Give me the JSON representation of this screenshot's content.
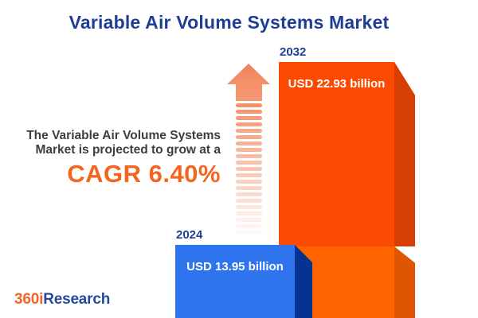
{
  "title": "Variable Air Volume Systems Market",
  "insight": {
    "line1": "The Variable Air Volume Systems",
    "line2": "Market is projected to grow at a",
    "cagr": "CAGR 6.40%"
  },
  "bars": [
    {
      "year_label": "2024",
      "value_label": "USD 13.95 billion"
    },
    {
      "year_label": "2032",
      "value_label": "USD 22.93 billion"
    }
  ],
  "logo": {
    "part1": "360i",
    "part2": "Research"
  },
  "icons": {
    "growth_arrow": "striped upward arrow fading toward bottom"
  },
  "colors": {
    "title_blue": "#1E3E96",
    "text_dark": "#3E3E3E",
    "accent_orange": "#F4641E",
    "logo_orange": "#F26522",
    "logo_blue": "#24489A",
    "bar_2032_front": "#FC4A03",
    "bar_2032_side": "#D63E03",
    "bar_2032_front_lower": "#FF6300",
    "bar_2032_side_lower": "#DF5503",
    "bar_2024_front": "#2E74EC",
    "bar_2024_side": "#05338F",
    "arrow_orange": "#F5916B"
  },
  "chart_data": {
    "type": "bar",
    "categories": [
      "2024",
      "2032"
    ],
    "values": [
      13.95,
      22.93
    ],
    "value_labels": [
      "USD 13.95 billion",
      "USD 22.93 billion"
    ],
    "unit": "USD billion",
    "title": "Variable Air Volume Systems Market",
    "annotation": "The Variable Air Volume Systems Market is projected to grow at a CAGR 6.40%",
    "cagr_percent": 6.4,
    "bar_colors": [
      "#2E74EC",
      "#FC4A03"
    ],
    "legend_position": "none",
    "grid": false,
    "style": "3d-extruded infographic bars, values labeled inside bars, years labeled above bars"
  }
}
